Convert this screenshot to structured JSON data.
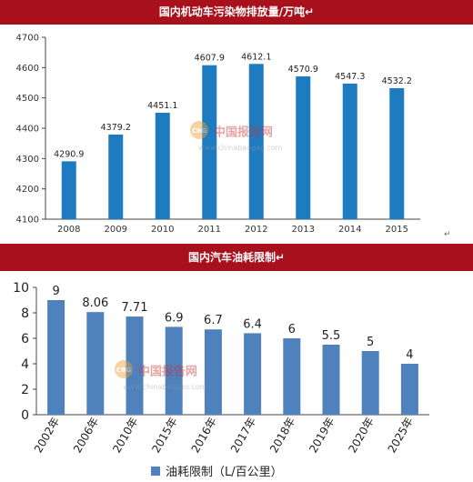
{
  "colors": {
    "banner": "#a8101b",
    "bar1": "#1f7bbf",
    "bar2": "#4f81bd",
    "watermark": "#cc3333"
  },
  "watermark": {
    "brand": "中国报告网",
    "url": "www.chinabaogao.com",
    "badge": "CBG"
  },
  "chart_data": [
    {
      "type": "bar",
      "title": "国内机动车污染物排放量/万吨",
      "title_mark": "↵",
      "categories": [
        "2008",
        "2009",
        "2010",
        "2011",
        "2012",
        "2013",
        "2014",
        "2015"
      ],
      "values": [
        4290.9,
        4379.2,
        4451.1,
        4607.9,
        4612.1,
        4570.9,
        4547.3,
        4532.2
      ],
      "value_labels": [
        "4290.9",
        "4379.2",
        "4451.1",
        "4607.9",
        "4612.1",
        "4570.9",
        "4547.3",
        "4532.2"
      ],
      "yticks": [
        "4100",
        "4200",
        "4300",
        "4400",
        "4500",
        "4600",
        "4700"
      ],
      "ylim": [
        4100,
        4700
      ],
      "grid": false,
      "xlabel": "",
      "ylabel": "",
      "end_mark": "↵"
    },
    {
      "type": "bar",
      "title": "国内汽车油耗限制",
      "title_mark": "↵",
      "categories": [
        "2002年",
        "2006年",
        "2010年",
        "2015年",
        "2016年",
        "2017年",
        "2018年",
        "2019年",
        "2020年",
        "2025年"
      ],
      "values": [
        9,
        8.06,
        7.71,
        6.9,
        6.7,
        6.4,
        6,
        5.5,
        5,
        4
      ],
      "value_labels": [
        "9",
        "8.06",
        "7.71",
        "6.9",
        "6.7",
        "6.4",
        "6",
        "5.5",
        "5",
        "4"
      ],
      "yticks": [
        "0",
        "2",
        "4",
        "6",
        "8",
        "10"
      ],
      "ylim": [
        0,
        10
      ],
      "grid": false,
      "legend": "油耗限制（L/百公里）",
      "legend_position": "bottom",
      "xlabel": "",
      "ylabel": ""
    }
  ]
}
